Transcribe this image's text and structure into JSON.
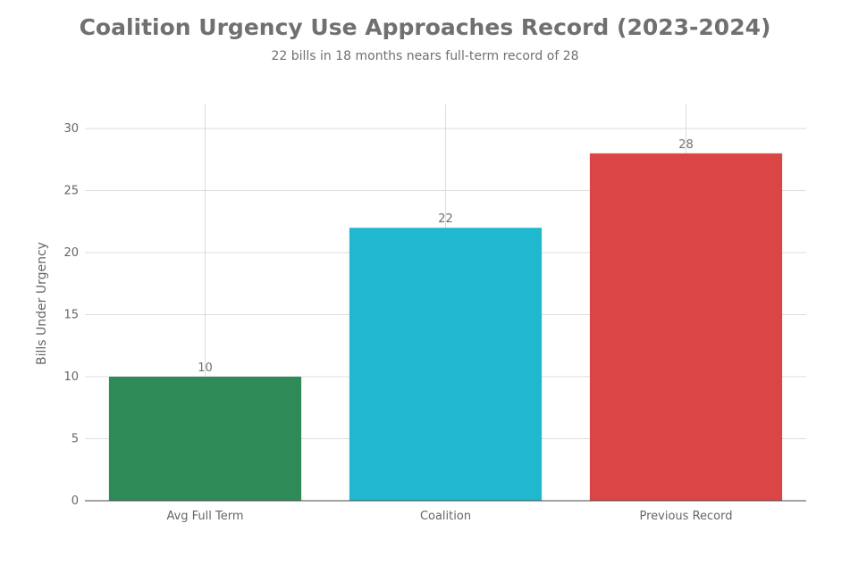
{
  "chart_data": {
    "type": "bar",
    "title": "Coalition Urgency Use Approaches Record (2023-2024)",
    "subtitle": "22 bills in 18 months nears full-term record of 28",
    "xlabel": "",
    "ylabel": "Bills Under Urgency",
    "categories": [
      "Avg Full Term",
      "Coalition",
      "Previous Record"
    ],
    "values": [
      10,
      22,
      28
    ],
    "colors": [
      "#2e8b57",
      "#20b8ce",
      "#dc4545"
    ],
    "ylim": [
      0,
      32
    ],
    "yticks": [
      0,
      5,
      10,
      15,
      20,
      25,
      30
    ],
    "grid": true
  }
}
